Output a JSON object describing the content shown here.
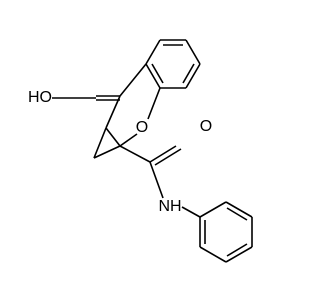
{
  "labels": [
    "HO",
    "O",
    "O",
    "NH"
  ]
}
